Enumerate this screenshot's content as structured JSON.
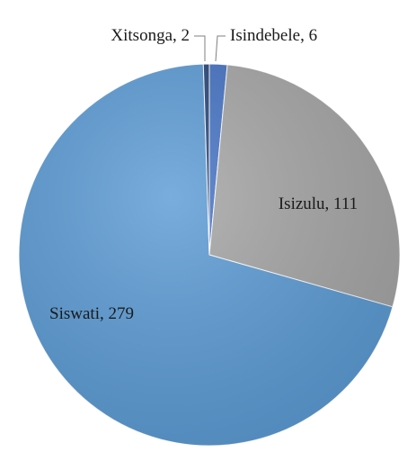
{
  "chart_data": {
    "type": "pie",
    "slices": [
      {
        "label": "Isindebele",
        "value": 6,
        "display": "Isindebele, 6",
        "color": "#4472c4"
      },
      {
        "label": "Isizulu",
        "value": 111,
        "display": "Isizulu, 111",
        "color": "#a5a5a5"
      },
      {
        "label": "Siswati",
        "value": 279,
        "display": "Siswati, 279",
        "color": "#5b9bd5"
      },
      {
        "label": "Xitsonga",
        "value": 2,
        "display": "Xitsonga, 2",
        "color": "#264478"
      }
    ],
    "title": "",
    "legend": "none",
    "start": "12 o'clock",
    "direction": "clockwise"
  }
}
